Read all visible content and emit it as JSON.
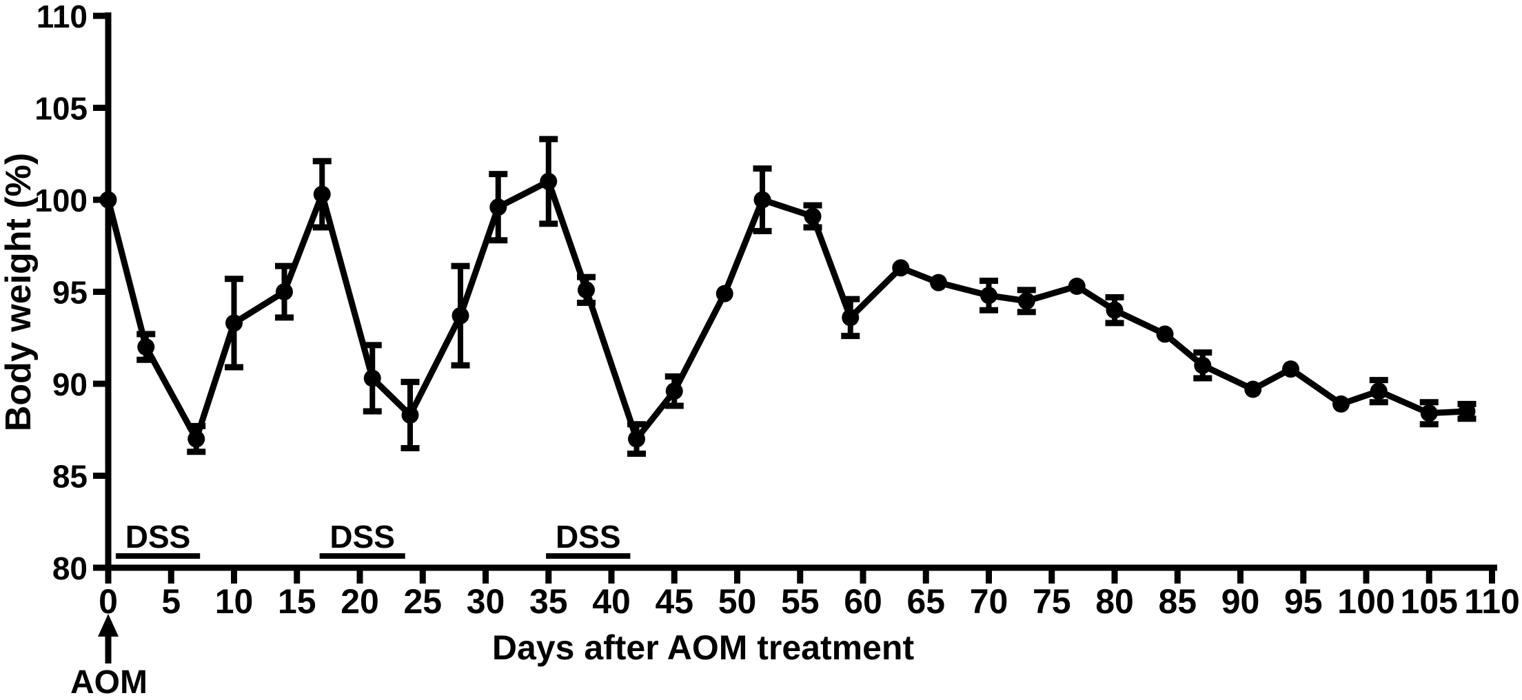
{
  "figure": {
    "background": "#ffffff",
    "ink_color": "#000000"
  },
  "chart_data": {
    "type": "line",
    "title": "",
    "xlabel": "Days after AOM treatment",
    "ylabel": "Body weight (%)",
    "xlim": [
      0,
      110
    ],
    "ylim": [
      80,
      110
    ],
    "x_ticks": [
      0,
      5,
      10,
      15,
      20,
      25,
      30,
      35,
      40,
      45,
      50,
      55,
      60,
      65,
      70,
      75,
      80,
      85,
      90,
      95,
      100,
      105,
      110
    ],
    "y_ticks": [
      80,
      85,
      90,
      95,
      100,
      105,
      110
    ],
    "grid": false,
    "legend": "none",
    "series": [
      {
        "name": "Body weight (%)",
        "marker": "filled-circle",
        "color": "#000000",
        "error_bars": "sem",
        "points": [
          {
            "day": 0,
            "value": 100.0,
            "sem": 0
          },
          {
            "day": 3,
            "value": 92.0,
            "sem": 0.7
          },
          {
            "day": 7,
            "value": 87.0,
            "sem": 0.7
          },
          {
            "day": 10,
            "value": 93.3,
            "sem": 2.4
          },
          {
            "day": 14,
            "value": 95.0,
            "sem": 1.4
          },
          {
            "day": 17,
            "value": 100.3,
            "sem": 1.8
          },
          {
            "day": 21,
            "value": 90.3,
            "sem": 1.8
          },
          {
            "day": 24,
            "value": 88.3,
            "sem": 1.8
          },
          {
            "day": 28,
            "value": 93.7,
            "sem": 2.7
          },
          {
            "day": 31,
            "value": 99.6,
            "sem": 1.8
          },
          {
            "day": 35,
            "value": 101.0,
            "sem": 2.3
          },
          {
            "day": 38,
            "value": 95.1,
            "sem": 0.7
          },
          {
            "day": 42,
            "value": 87.0,
            "sem": 0.8
          },
          {
            "day": 45,
            "value": 89.6,
            "sem": 0.8
          },
          {
            "day": 49,
            "value": 94.9,
            "sem": 0
          },
          {
            "day": 52,
            "value": 100.0,
            "sem": 1.7
          },
          {
            "day": 56,
            "value": 99.1,
            "sem": 0.6
          },
          {
            "day": 59,
            "value": 93.6,
            "sem": 1.0
          },
          {
            "day": 63,
            "value": 96.3,
            "sem": 0
          },
          {
            "day": 66,
            "value": 95.5,
            "sem": 0
          },
          {
            "day": 70,
            "value": 94.8,
            "sem": 0.8
          },
          {
            "day": 73,
            "value": 94.5,
            "sem": 0.6
          },
          {
            "day": 77,
            "value": 95.3,
            "sem": 0
          },
          {
            "day": 80,
            "value": 94.0,
            "sem": 0.7
          },
          {
            "day": 84,
            "value": 92.7,
            "sem": 0
          },
          {
            "day": 87,
            "value": 91.0,
            "sem": 0.7
          },
          {
            "day": 91,
            "value": 89.7,
            "sem": 0
          },
          {
            "day": 94,
            "value": 90.8,
            "sem": 0
          },
          {
            "day": 98,
            "value": 88.9,
            "sem": 0
          },
          {
            "day": 101,
            "value": 89.6,
            "sem": 0.6
          },
          {
            "day": 105,
            "value": 88.4,
            "sem": 0.6
          },
          {
            "day": 108,
            "value": 88.5,
            "sem": 0.4
          }
        ]
      }
    ],
    "annotations": {
      "dss_label": "DSS",
      "dss_periods": [
        {
          "start_day": 0.6,
          "end_day": 7.3
        },
        {
          "start_day": 16.8,
          "end_day": 23.6
        },
        {
          "start_day": 34.8,
          "end_day": 41.5
        }
      ],
      "aom_label": "AOM",
      "aom_arrow_day": 0
    }
  }
}
